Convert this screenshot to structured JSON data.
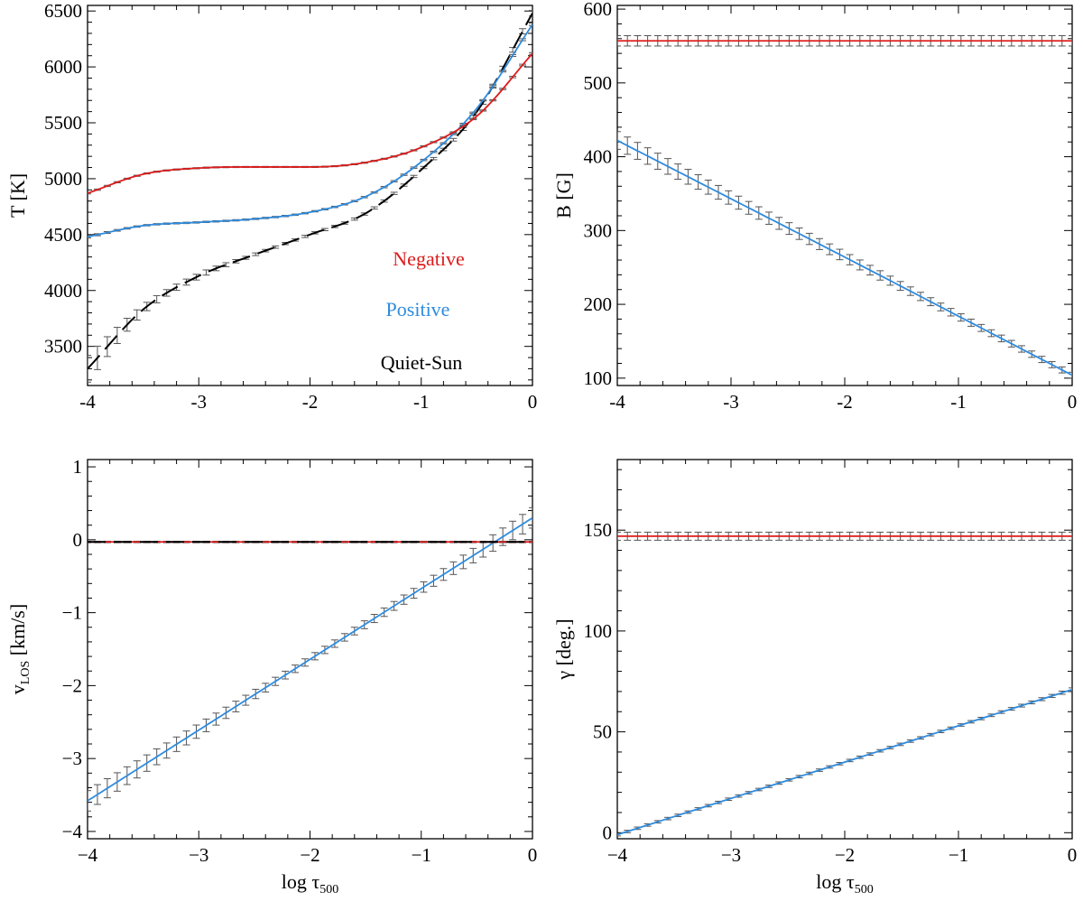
{
  "colors": {
    "negative": "#dd1c1c",
    "positive": "#2e8bde",
    "quiet_sun": "#000000",
    "error_bar": "#555555"
  },
  "legend": [
    {
      "label": "Negative",
      "series": "negative"
    },
    {
      "label": "Positive",
      "series": "positive"
    },
    {
      "label": "Quiet-Sun",
      "series": "quiet_sun"
    }
  ],
  "chart_data": [
    {
      "type": "line",
      "panel": "temperature",
      "xlabel_main": "",
      "xlabel_sub": "",
      "ylabel_main": "T [K]",
      "ylabel_sub": "",
      "xlim": [
        -4,
        0
      ],
      "ylim": [
        3150,
        6550
      ],
      "xticks": [
        -4,
        -3,
        -2,
        -1,
        0
      ],
      "yticks": [
        3500,
        4000,
        4500,
        5000,
        5500,
        6000,
        6500
      ],
      "legend_placement": "lower-right",
      "series": [
        {
          "key": "quiet_sun",
          "dashed": true,
          "x": [
            -4,
            -3.5,
            -3,
            -2.5,
            -2,
            -1.5,
            -1,
            -0.5,
            0
          ],
          "y": [
            3300,
            3830,
            4130,
            4320,
            4500,
            4690,
            5080,
            5600,
            6480
          ],
          "err": [
            120,
            40,
            25,
            12,
            10,
            10,
            10,
            15,
            25
          ]
        },
        {
          "key": "positive",
          "dashed": false,
          "x": [
            -4,
            -3.5,
            -3,
            -2.5,
            -2,
            -1.5,
            -1,
            -0.5,
            0
          ],
          "y": [
            4480,
            4580,
            4610,
            4640,
            4700,
            4840,
            5150,
            5630,
            6380
          ],
          "err": [
            10,
            6,
            6,
            6,
            6,
            6,
            6,
            6,
            10
          ]
        },
        {
          "key": "negative",
          "dashed": false,
          "x": [
            -4,
            -3.5,
            -3,
            -2.5,
            -2,
            -1.5,
            -1,
            -0.5,
            0
          ],
          "y": [
            4870,
            5040,
            5095,
            5105,
            5105,
            5145,
            5280,
            5560,
            6120
          ],
          "err": [
            6,
            5,
            5,
            5,
            5,
            5,
            5,
            5,
            8
          ]
        }
      ]
    },
    {
      "type": "line",
      "panel": "magnetic-field",
      "xlabel_main": "",
      "xlabel_sub": "",
      "ylabel_main": "B [G]",
      "ylabel_sub": "",
      "xlim": [
        -4,
        0
      ],
      "ylim": [
        90,
        605
      ],
      "xticks": [
        -4,
        -3,
        -2,
        -1,
        0
      ],
      "yticks": [
        100,
        200,
        300,
        400,
        500,
        600
      ],
      "series": [
        {
          "key": "positive",
          "dashed": false,
          "x": [
            -4,
            -3,
            -2,
            -1,
            0
          ],
          "y": [
            422,
            343,
            264,
            184,
            104
          ],
          "err": [
            12,
            9,
            7,
            5,
            4
          ]
        },
        {
          "key": "negative",
          "dashed": false,
          "x": [
            -4,
            -3,
            -2,
            -1,
            0
          ],
          "y": [
            557,
            557,
            557,
            557,
            557
          ],
          "err": [
            7,
            7,
            7,
            7,
            7
          ]
        }
      ]
    },
    {
      "type": "line",
      "panel": "line-of-sight-velocity",
      "xlabel_main": "log τ",
      "xlabel_sub": "500",
      "ylabel_main": "v",
      "ylabel_sub": "LOS",
      "ylabel_suffix": " [km/s]",
      "xlim": [
        -4,
        0
      ],
      "ylim": [
        -4.1,
        1.1
      ],
      "xticks": [
        -4,
        -3,
        -2,
        -1,
        0
      ],
      "yticks": [
        -4,
        -3,
        -2,
        -1,
        0,
        1
      ],
      "series": [
        {
          "key": "positive",
          "dashed": false,
          "x": [
            -4,
            -3,
            -2,
            -1,
            0
          ],
          "y": [
            -3.58,
            -2.61,
            -1.64,
            -0.67,
            0.3
          ],
          "err": [
            0.14,
            0.09,
            0.05,
            0.07,
            0.14
          ]
        },
        {
          "key": "negative",
          "dashed": false,
          "x": [
            -4,
            -3,
            -2,
            -1,
            0
          ],
          "y": [
            -0.03,
            -0.03,
            -0.03,
            -0.03,
            -0.03
          ],
          "err": [
            0.01,
            0.01,
            0.01,
            0.01,
            0.01
          ]
        },
        {
          "key": "quiet_sun",
          "dashed": true,
          "x": [
            -4,
            -3,
            -2,
            -1,
            0
          ],
          "y": [
            -0.03,
            -0.03,
            -0.03,
            -0.03,
            -0.03
          ],
          "err": [
            0,
            0,
            0,
            0,
            0
          ]
        }
      ]
    },
    {
      "type": "line",
      "panel": "inclination",
      "xlabel_main": "log τ",
      "xlabel_sub": "500",
      "ylabel_main": "γ [deg.]",
      "ylabel_sub": "",
      "xlim": [
        -4,
        0
      ],
      "ylim": [
        -3,
        185
      ],
      "xticks": [
        -4,
        -3,
        -2,
        -1,
        0
      ],
      "yticks": [
        0,
        50,
        100,
        150
      ],
      "series": [
        {
          "key": "positive",
          "dashed": false,
          "x": [
            -4,
            -3,
            -2,
            -1,
            0
          ],
          "y": [
            -1,
            17,
            35,
            53,
            71
          ],
          "err": [
            0.6,
            0.6,
            0.6,
            0.6,
            0.8
          ]
        },
        {
          "key": "negative",
          "dashed": false,
          "x": [
            -4,
            -3,
            -2,
            -1,
            0
          ],
          "y": [
            147,
            147,
            147,
            147,
            147
          ],
          "err": [
            2,
            2,
            2,
            2,
            2
          ]
        }
      ]
    }
  ]
}
